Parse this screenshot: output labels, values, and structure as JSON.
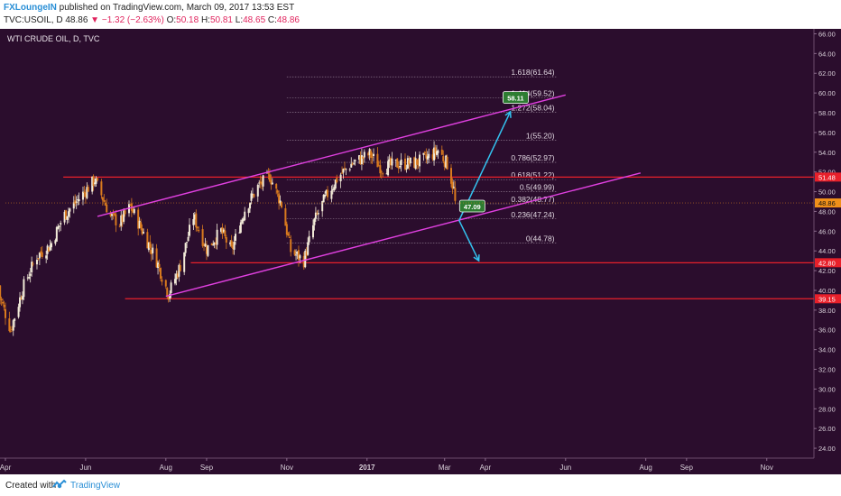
{
  "header": {
    "author": "FXLoungeIN",
    "published_text": "published on TradingView.com, March 09, 2017 13:53 EST",
    "symbol": "TVC:USOIL, D",
    "last": "48.86",
    "change": "▼ −1.32 (−2.63%)",
    "o_label": "O:",
    "o_value": "50.18",
    "h_label": "H:",
    "h_value": "50.81",
    "l_label": "L:",
    "l_value": "48.65",
    "c_label": "C:",
    "c_value": "48.86"
  },
  "footer": {
    "created_with": "Created with",
    "brand": "TradingView"
  },
  "colors": {
    "background": "#2b0d2d",
    "candle_up": "#f2ead8",
    "candle_down": "#d97a1e",
    "channel": "#e040e0",
    "support_resistance": "#e8202a",
    "arrow": "#33c3f0",
    "price_box": "#f0901a",
    "target_box": "#2e7d32"
  },
  "chart_data": {
    "type": "candlestick",
    "title": "WTI CRUDE OIL, D, TVC",
    "ylim": [
      23,
      66.5
    ],
    "y_ticks": [
      24,
      26,
      28,
      30,
      32,
      34,
      36,
      38,
      40,
      42,
      44,
      46,
      48,
      50,
      52,
      54,
      56,
      58,
      60,
      62,
      64,
      66
    ],
    "x_range": [
      "2016-04-01",
      "2017-11-30"
    ],
    "x_ticks": [
      {
        "label": "Apr",
        "date": "2016-04-01"
      },
      {
        "label": "Jun",
        "date": "2016-06-01"
      },
      {
        "label": "Aug",
        "date": "2016-08-01"
      },
      {
        "label": "Sep",
        "date": "2016-09-01"
      },
      {
        "label": "Nov",
        "date": "2016-11-01"
      },
      {
        "label": "2017",
        "date": "2017-01-01",
        "bold": true
      },
      {
        "label": "Mar",
        "date": "2017-03-01"
      },
      {
        "label": "Apr",
        "date": "2017-04-01"
      },
      {
        "label": "Jun",
        "date": "2017-06-01"
      },
      {
        "label": "Aug",
        "date": "2017-08-01"
      },
      {
        "label": "Sep",
        "date": "2017-09-01"
      },
      {
        "label": "Nov",
        "date": "2017-11-01"
      }
    ],
    "price_path": [
      [
        "2016-03-25",
        40.5
      ],
      [
        "2016-04-05",
        36.0
      ],
      [
        "2016-04-15",
        40.5
      ],
      [
        "2016-04-25",
        43.5
      ],
      [
        "2016-05-05",
        44.5
      ],
      [
        "2016-05-15",
        47.5
      ],
      [
        "2016-05-25",
        49.0
      ],
      [
        "2016-06-08",
        51.2
      ],
      [
        "2016-06-20",
        47.5
      ],
      [
        "2016-06-27",
        46.8
      ],
      [
        "2016-07-05",
        48.5
      ],
      [
        "2016-07-15",
        45.8
      ],
      [
        "2016-07-25",
        43.0
      ],
      [
        "2016-08-03",
        39.6
      ],
      [
        "2016-08-12",
        42.5
      ],
      [
        "2016-08-22",
        47.5
      ],
      [
        "2016-09-01",
        44.2
      ],
      [
        "2016-09-12",
        46.0
      ],
      [
        "2016-09-20",
        44.0
      ],
      [
        "2016-09-30",
        48.2
      ],
      [
        "2016-10-10",
        50.5
      ],
      [
        "2016-10-19",
        51.6
      ],
      [
        "2016-10-28",
        48.7
      ],
      [
        "2016-11-04",
        44.0
      ],
      [
        "2016-11-14",
        43.0
      ],
      [
        "2016-11-22",
        47.0
      ],
      [
        "2016-11-30",
        49.3
      ],
      [
        "2016-12-10",
        51.5
      ],
      [
        "2016-12-20",
        52.8
      ],
      [
        "2017-01-03",
        53.8
      ],
      [
        "2017-01-12",
        52.4
      ],
      [
        "2017-01-24",
        52.8
      ],
      [
        "2017-02-06",
        52.9
      ],
      [
        "2017-02-16",
        53.4
      ],
      [
        "2017-02-24",
        54.2
      ],
      [
        "2017-03-03",
        52.8
      ],
      [
        "2017-03-08",
        50.2
      ],
      [
        "2017-03-09",
        48.86
      ]
    ],
    "horizontal_levels": [
      {
        "y": 51.48,
        "x_start": "2016-05-15",
        "x_end": "2017-11-30",
        "label": "51.48"
      },
      {
        "y": 42.8,
        "x_start": "2016-08-20",
        "x_end": "2017-11-30",
        "label": "42.80"
      },
      {
        "y": 39.15,
        "x_start": "2016-07-01",
        "x_end": "2017-11-30",
        "label": "39.15"
      }
    ],
    "channel_upper": [
      [
        "2016-06-10",
        47.5
      ],
      [
        "2017-06-01",
        59.8
      ]
    ],
    "channel_lower": [
      [
        "2016-08-01",
        39.4
      ],
      [
        "2017-07-28",
        51.9
      ]
    ],
    "fib_levels": [
      {
        "y": 61.64,
        "label": "1.618(61.64)"
      },
      {
        "y": 59.52,
        "label": "1.414(59.52)"
      },
      {
        "y": 58.04,
        "label": "1.272(58.04)"
      },
      {
        "y": 55.2,
        "label": "1(55.20)"
      },
      {
        "y": 52.97,
        "label": "0.786(52.97)"
      },
      {
        "y": 51.22,
        "label": "0.618(51.22)"
      },
      {
        "y": 49.99,
        "label": "0.5(49.99)"
      },
      {
        "y": 48.77,
        "label": "0.382(48.77)"
      },
      {
        "y": 47.24,
        "label": "0.236(47.24)"
      },
      {
        "y": 44.78,
        "label": "0(44.78)"
      }
    ],
    "fib_x_range": [
      "2016-11-01",
      "2017-05-25"
    ],
    "arrows": [
      {
        "from": [
          "2017-03-12",
          47.09
        ],
        "to": [
          "2017-04-20",
          58.11
        ]
      },
      {
        "from": [
          "2017-03-12",
          47.09
        ],
        "to": [
          "2017-03-27",
          43.0
        ]
      }
    ],
    "annotations": [
      {
        "text": "58.11",
        "x": "2017-04-24",
        "y": 59.5
      },
      {
        "text": "47.09",
        "x": "2017-03-22",
        "y": 48.5
      }
    ],
    "price_tags": [
      {
        "y": 48.86,
        "label": "48.86",
        "color": "#f0901a",
        "text_color": "#111111"
      }
    ]
  }
}
